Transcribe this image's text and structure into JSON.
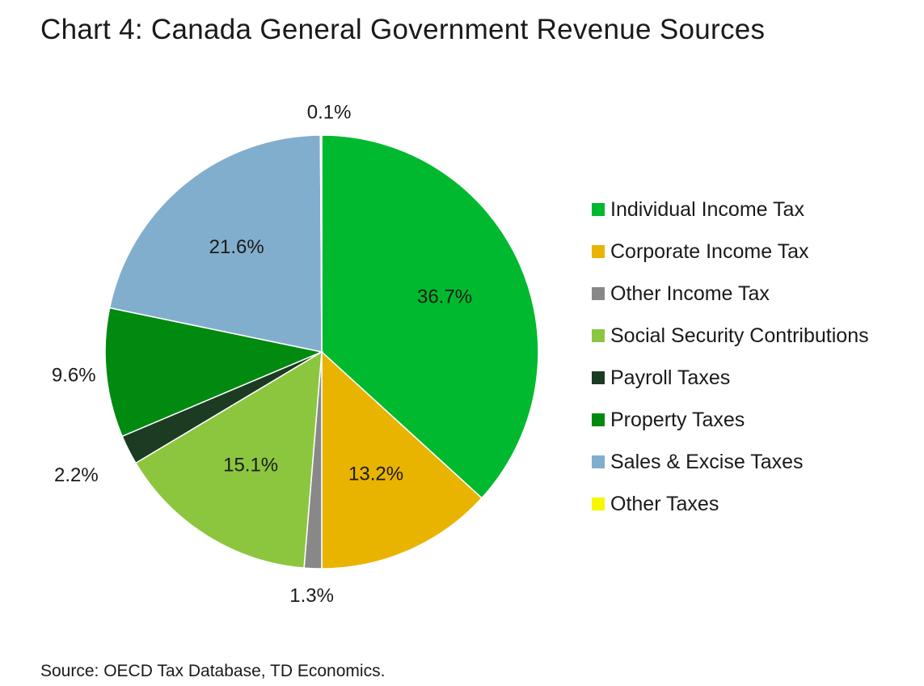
{
  "chart_data": {
    "type": "pie",
    "title": "Chart 4: Canada General Government Revenue Sources",
    "categories": [
      "Individual Income Tax",
      "Corporate Income Tax",
      "Other Income Tax",
      "Social Security Contributions",
      "Payroll Taxes",
      "Property Taxes",
      "Sales & Excise Taxes",
      "Other Taxes"
    ],
    "values": [
      36.7,
      13.2,
      1.3,
      15.1,
      2.2,
      9.6,
      21.6,
      0.1
    ],
    "data_labels": [
      "36.7%",
      "13.2%",
      "1.3%",
      "15.1%",
      "2.2%",
      "9.6%",
      "21.6%",
      "0.1%"
    ],
    "colors": [
      "#00b92e",
      "#e8b400",
      "#888888",
      "#8cc63f",
      "#1b3b22",
      "#008a10",
      "#82aecd",
      "#f7f700"
    ],
    "legend_position": "right",
    "start": "12 o'clock",
    "direction": "clockwise"
  },
  "source": "Source: OECD Tax Database, TD Economics."
}
